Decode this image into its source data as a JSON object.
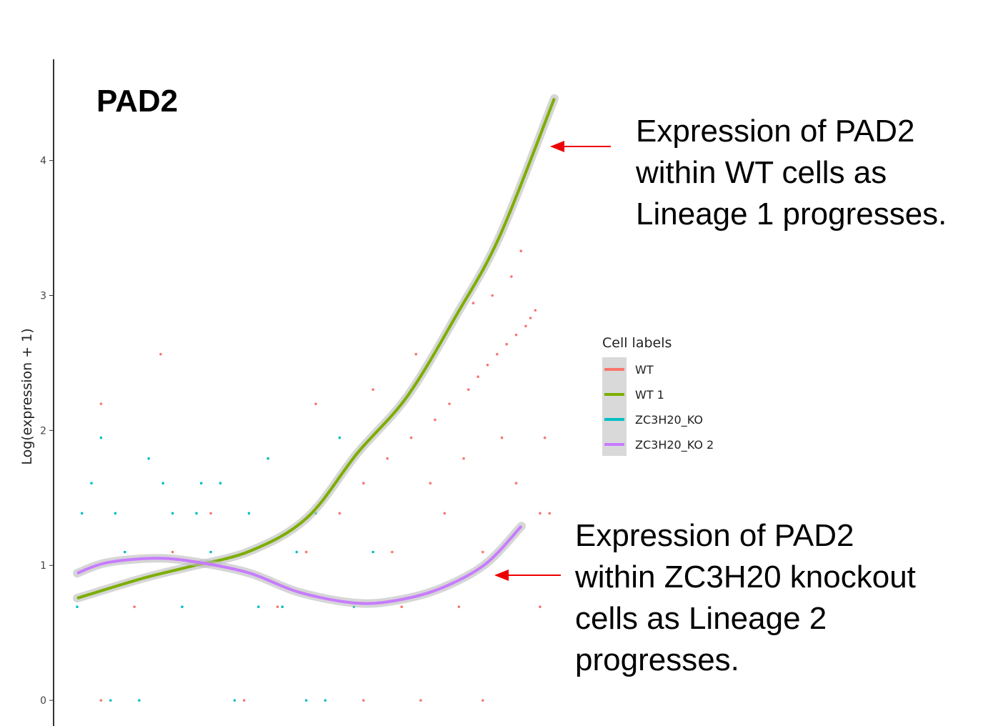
{
  "chart_data": {
    "type": "line",
    "title": "PAD2",
    "y_label": "Log(expression + 1)",
    "legend_title": "Cell labels",
    "legend_position": "right",
    "xlim": [
      0,
      100
    ],
    "ylim": [
      -0.19,
      4.75
    ],
    "yticks": [
      0,
      1,
      2,
      3,
      4
    ],
    "grid": false,
    "series": [
      {
        "name": "WT",
        "type": "scatter",
        "color": "#f8766d",
        "x": [
          5,
          12,
          20,
          28,
          35,
          42,
          48,
          55,
          60,
          65,
          70,
          72,
          75,
          78,
          80,
          82,
          84,
          85,
          86,
          88,
          90,
          92,
          94,
          96,
          97,
          40,
          50,
          62,
          68,
          74,
          83,
          87,
          91,
          93,
          95,
          89,
          81,
          77,
          71,
          66,
          17.5,
          5,
          98,
          99,
          97,
          60,
          85,
          92
        ],
        "values": [
          0,
          0.693,
          1.099,
          1.386,
          0,
          0.693,
          1.099,
          1.386,
          1.609,
          1.792,
          1.946,
          0,
          2.079,
          2.197,
          0.693,
          2.303,
          2.398,
          1.099,
          2.485,
          2.565,
          2.639,
          2.708,
          2.773,
          2.89,
          1.386,
          1.792,
          2.197,
          2.303,
          0.693,
          1.609,
          2.944,
          3.0,
          3.14,
          3.33,
          2.833,
          1.946,
          1.792,
          1.386,
          2.565,
          1.099,
          2.565,
          2.197,
          1.946,
          1.386,
          0.693,
          0,
          0,
          1.609
        ]
      },
      {
        "name": "WT 1",
        "type": "line",
        "color": "#7cae00",
        "x": [
          0,
          13.8,
          22.8,
          36.2,
          48.2,
          58.7,
          69.2,
          79.6,
          88.6,
          100
        ],
        "values": [
          0.757,
          0.905,
          0.984,
          1.106,
          1.354,
          1.831,
          2.254,
          2.862,
          3.444,
          4.46
        ]
      },
      {
        "name": "ZC3H20_KO",
        "type": "scatter",
        "color": "#00bfc4",
        "x": [
          0,
          3,
          5,
          8,
          10,
          13,
          15,
          18,
          22,
          25,
          28,
          30,
          33,
          36,
          40,
          43,
          46,
          50,
          52,
          55,
          58,
          62,
          7,
          20,
          38,
          48,
          26,
          1
        ],
        "values": [
          0.693,
          1.609,
          1.946,
          1.386,
          1.099,
          0,
          1.792,
          1.609,
          0.693,
          1.386,
          1.099,
          1.609,
          0,
          1.386,
          1.792,
          0.693,
          1.099,
          1.386,
          0,
          1.946,
          0.693,
          1.099,
          0,
          1.386,
          0.693,
          0,
          1.609,
          1.386
        ]
      },
      {
        "name": "ZC3H20_KO 2",
        "type": "line",
        "color": "#c77cff",
        "x": [
          0,
          6.3,
          16.8,
          25.7,
          36.2,
          46.7,
          58.7,
          67.7,
          76.6,
          85.6,
          93.1
        ],
        "values": [
          0.942,
          1.021,
          1.053,
          1.021,
          0.942,
          0.799,
          0.72,
          0.746,
          0.836,
          1.011,
          1.291
        ]
      }
    ],
    "annotations": [
      {
        "lines": [
          "Expression of PAD2",
          "within WT cells as",
          "Lineage 1 progresses."
        ]
      },
      {
        "lines": [
          "Expression of PAD2",
          "within ZC3H20 knockout",
          "cells as Lineage 2",
          "progresses."
        ]
      }
    ]
  }
}
